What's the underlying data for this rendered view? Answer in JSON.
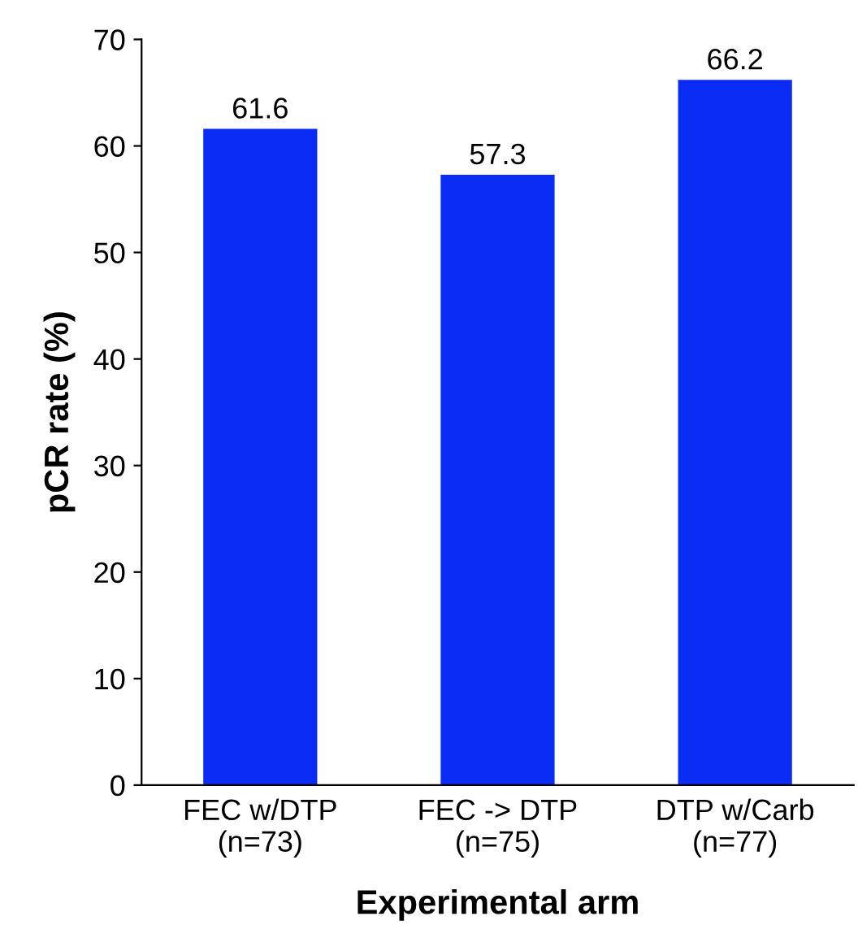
{
  "chart_data": {
    "type": "bar",
    "xlabel": "Experimental arm",
    "ylabel": "pCR rate (%)",
    "categories": [
      "FEC w/DTP\n(n=73)",
      "FEC -> DTP\n(n=75)",
      "DTP w/Carb\n(n=77)"
    ],
    "values": [
      61.6,
      57.3,
      66.2
    ],
    "color": "#0a2cf5",
    "data_labels": true,
    "ylim": [
      0,
      70
    ],
    "yticks": [
      0,
      10,
      20,
      30,
      40,
      50,
      60,
      70
    ],
    "grid": false,
    "legend": false
  }
}
